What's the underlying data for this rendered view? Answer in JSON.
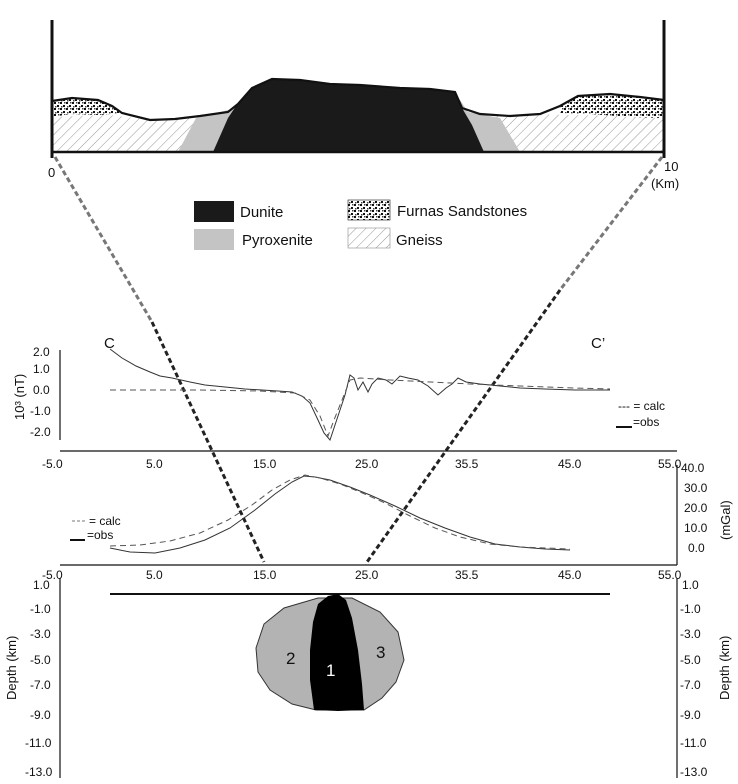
{
  "cross_section": {
    "scale_start": "0",
    "scale_end": "10",
    "scale_unit": "(Km)"
  },
  "legend": [
    {
      "label": "Dunite",
      "pattern": "solid-black"
    },
    {
      "label": "Pyroxenite",
      "pattern": "light-gray"
    },
    {
      "label": "Furnas Sandstones",
      "pattern": "stippled"
    },
    {
      "label": "Gneiss",
      "pattern": "hatched"
    }
  ],
  "magnetic": {
    "ylabel": "10³ (nT)",
    "profile_start": "C",
    "profile_end": "C’",
    "yticks": [
      "2.0",
      "1.0",
      "0.0",
      "-1.0",
      "-2.0"
    ],
    "xticks": [
      "-5.0",
      "5.0",
      "15.0",
      "25.0",
      "35.5",
      "45.0",
      "55.0"
    ],
    "legend_calc": "--- = calc",
    "legend_obs": "=obs"
  },
  "gravity": {
    "ylabel": "(mGal)",
    "yticks": [
      "40.0",
      "30.0",
      "20.0",
      "10.0",
      "0.0"
    ],
    "xticks": [
      "-5.0",
      "5.0",
      "15.0",
      "25.0",
      "35.5",
      "45.0",
      "55.0"
    ],
    "legend_calc": "= calc",
    "legend_obs": "=obs"
  },
  "model": {
    "ylabel_left": "Depth (km)",
    "ylabel_right": "Depth   (km)",
    "yticks": [
      "1.0",
      "-1.0",
      "-3.0",
      "-5.0",
      "-7.0",
      "-9.0",
      "-11.0",
      "-13.0"
    ],
    "bodies": [
      "1",
      "2",
      "3"
    ]
  },
  "colors": {
    "dunite": "#1a1a1a",
    "pyroxenite": "#c4c4c4",
    "body_gray": "#b3b3b3",
    "connector": "#222222",
    "connector_gray": "#777777"
  }
}
